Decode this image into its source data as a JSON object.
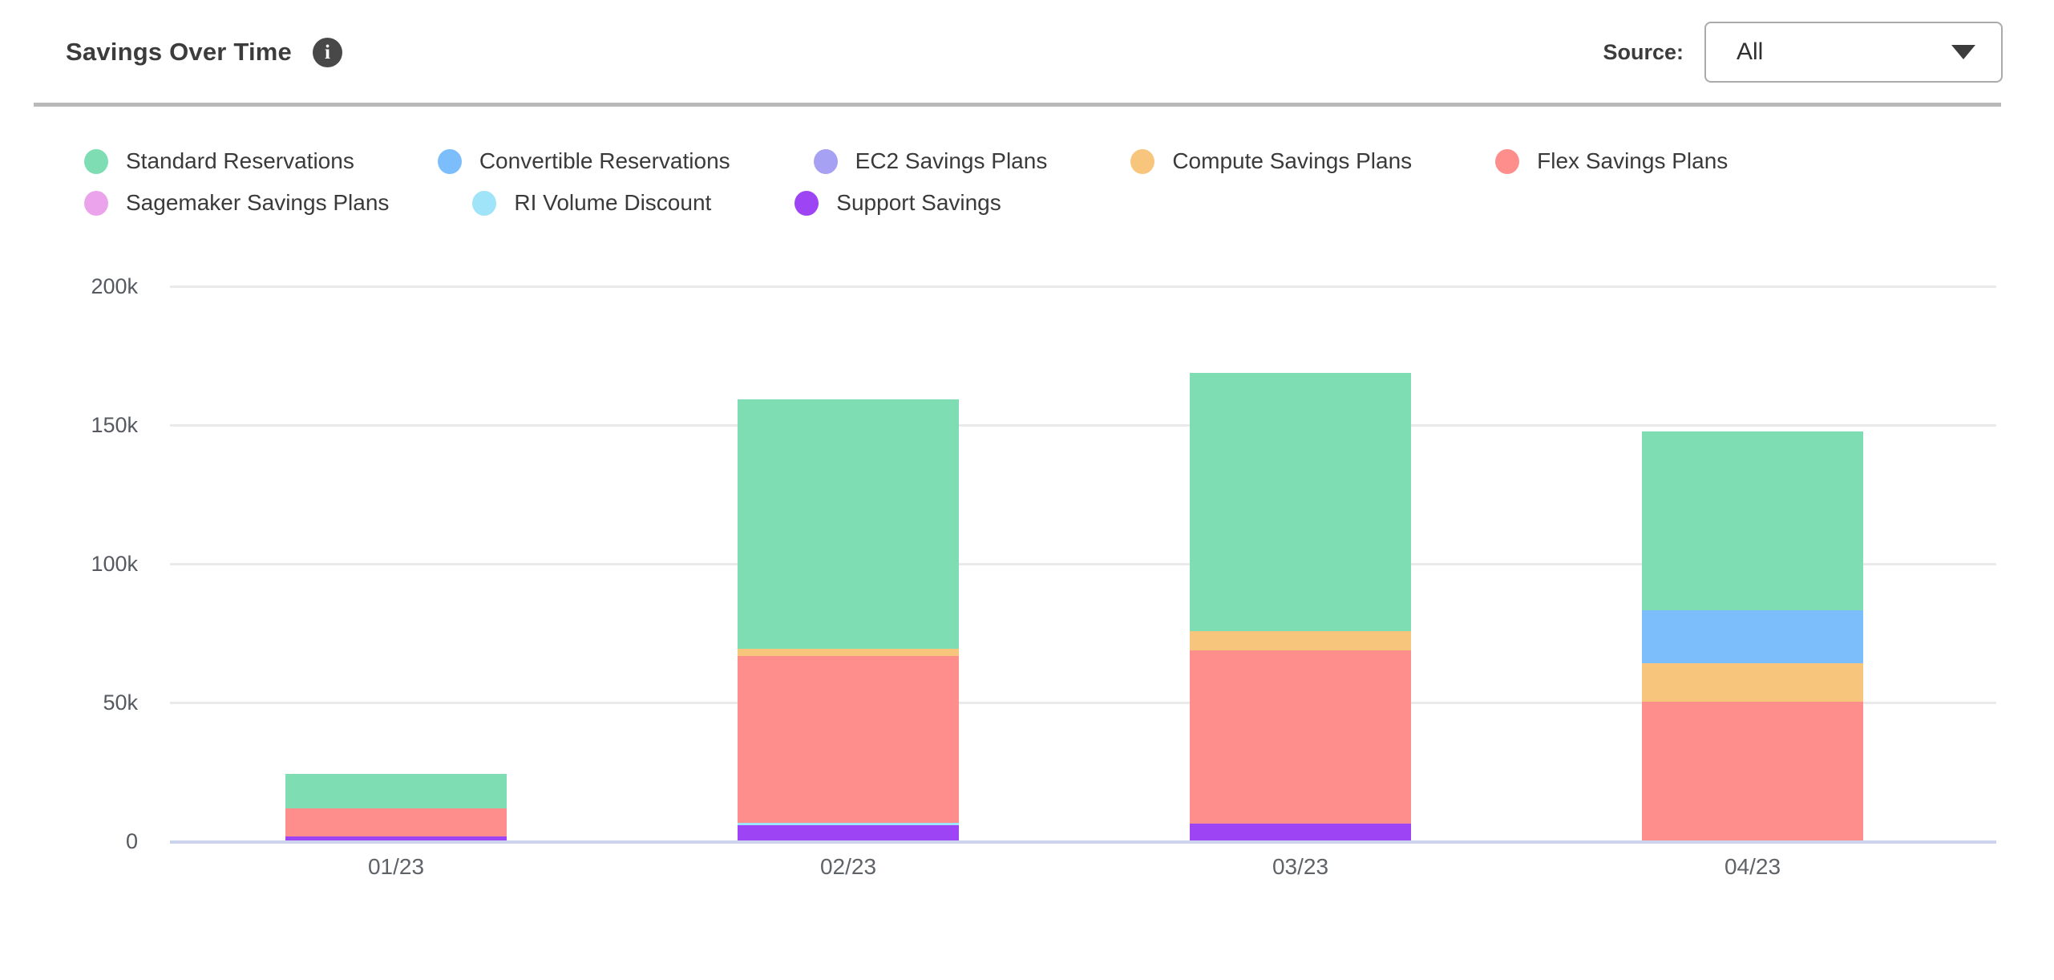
{
  "header": {
    "title": "Savings Over Time",
    "info_icon": "i",
    "source_label": "Source:",
    "source_value": "All"
  },
  "chart_data": {
    "type": "bar",
    "stacked": true,
    "title": "Savings Over Time",
    "categories": [
      "01/23",
      "02/23",
      "03/23",
      "04/23"
    ],
    "values_unit": "thousands",
    "series": [
      {
        "name": "Standard Reservations",
        "color": "#7EDDB3",
        "values": [
          12.5,
          90,
          93,
          64.5
        ]
      },
      {
        "name": "Convertible Reservations",
        "color": "#7CBDFC",
        "values": [
          0,
          0,
          0,
          19
        ]
      },
      {
        "name": "EC2 Savings Plans",
        "color": "#A6A1F2",
        "values": [
          0,
          0,
          0,
          0
        ]
      },
      {
        "name": "Compute Savings Plans",
        "color": "#F8C57D",
        "values": [
          0,
          2.5,
          7,
          14
        ]
      },
      {
        "name": "Flex Savings Plans",
        "color": "#FD8E8C",
        "values": [
          10,
          60,
          62.5,
          50
        ]
      },
      {
        "name": "Sagemaker Savings Plans",
        "color": "#EBA4EC",
        "values": [
          0,
          0,
          0,
          0
        ]
      },
      {
        "name": "RI Volume Discount",
        "color": "#9FE4F8",
        "values": [
          0,
          1,
          0,
          0
        ]
      },
      {
        "name": "Support Savings",
        "color": "#9D44F5",
        "values": [
          1.5,
          5.5,
          6,
          0
        ]
      }
    ],
    "stack_order_bottom_to_top": [
      "Support Savings",
      "RI Volume Discount",
      "Sagemaker Savings Plans",
      "Flex Savings Plans",
      "Compute Savings Plans",
      "EC2 Savings Plans",
      "Convertible Reservations",
      "Standard Reservations"
    ],
    "totals": [
      24,
      159,
      168.5,
      147.5
    ],
    "yticks": [
      {
        "label": "200k",
        "value": 200
      },
      {
        "label": "150k",
        "value": 150
      },
      {
        "label": "100k",
        "value": 100
      },
      {
        "label": "50k",
        "value": 50
      },
      {
        "label": "0",
        "value": 0
      }
    ],
    "ylim": [
      0,
      200
    ],
    "grid": "horizontal",
    "legend_position": "top"
  }
}
